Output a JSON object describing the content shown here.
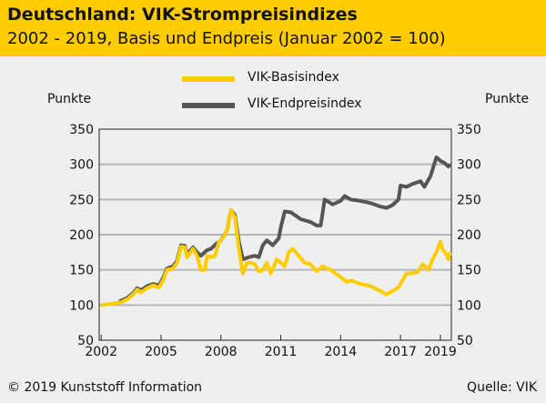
{
  "chart_data": {
    "type": "line",
    "title": "Deutschland: VIK-Strompreisindizes",
    "subtitle": "2002 - 2019, Basis und Endpreis (Januar 2002 = 100)",
    "ylabel_left": "Punkte",
    "ylabel_right": "Punkte",
    "ylim": [
      50,
      350
    ],
    "yticks": [
      350,
      300,
      250,
      200,
      150,
      100,
      50
    ],
    "xlim": [
      2001.9,
      2019.55
    ],
    "xticks": [
      2002,
      2005,
      2008,
      2011,
      2014,
      2017,
      2019
    ],
    "grid": true,
    "legend": "top-center",
    "series": [
      {
        "name": "VIK-Basisindex",
        "color": "#ffcc00",
        "points": [
          [
            2002.0,
            100
          ],
          [
            2002.5,
            102
          ],
          [
            2003.0,
            104
          ],
          [
            2003.3,
            108
          ],
          [
            2003.6,
            115
          ],
          [
            2003.8,
            122
          ],
          [
            2004.0,
            118
          ],
          [
            2004.3,
            124
          ],
          [
            2004.6,
            128
          ],
          [
            2004.9,
            125
          ],
          [
            2005.1,
            135
          ],
          [
            2005.3,
            150
          ],
          [
            2005.6,
            152
          ],
          [
            2005.8,
            160
          ],
          [
            2006.0,
            183
          ],
          [
            2006.2,
            182
          ],
          [
            2006.3,
            168
          ],
          [
            2006.6,
            180
          ],
          [
            2006.8,
            170
          ],
          [
            2007.0,
            150
          ],
          [
            2007.2,
            150
          ],
          [
            2007.3,
            170
          ],
          [
            2007.5,
            168
          ],
          [
            2007.7,
            170
          ],
          [
            2007.9,
            190
          ],
          [
            2008.1,
            195
          ],
          [
            2008.3,
            205
          ],
          [
            2008.5,
            235
          ],
          [
            2008.7,
            225
          ],
          [
            2008.9,
            180
          ],
          [
            2009.1,
            145
          ],
          [
            2009.3,
            160
          ],
          [
            2009.5,
            160
          ],
          [
            2009.7,
            158
          ],
          [
            2009.9,
            148
          ],
          [
            2010.1,
            150
          ],
          [
            2010.3,
            160
          ],
          [
            2010.5,
            145
          ],
          [
            2010.8,
            165
          ],
          [
            2011.0,
            160
          ],
          [
            2011.2,
            155
          ],
          [
            2011.4,
            175
          ],
          [
            2011.6,
            180
          ],
          [
            2011.9,
            170
          ],
          [
            2012.2,
            160
          ],
          [
            2012.5,
            158
          ],
          [
            2012.8,
            148
          ],
          [
            2013.1,
            155
          ],
          [
            2013.5,
            150
          ],
          [
            2014.0,
            140
          ],
          [
            2014.3,
            133
          ],
          [
            2014.5,
            135
          ],
          [
            2015.0,
            130
          ],
          [
            2015.5,
            127
          ],
          [
            2016.0,
            120
          ],
          [
            2016.3,
            115
          ],
          [
            2016.6,
            120
          ],
          [
            2016.9,
            125
          ],
          [
            2017.1,
            135
          ],
          [
            2017.3,
            145
          ],
          [
            2017.6,
            145
          ],
          [
            2017.9,
            148
          ],
          [
            2018.1,
            158
          ],
          [
            2018.4,
            150
          ],
          [
            2018.6,
            165
          ],
          [
            2018.8,
            175
          ],
          [
            2019.0,
            190
          ],
          [
            2019.1,
            180
          ],
          [
            2019.3,
            172
          ],
          [
            2019.4,
            165
          ],
          [
            2019.5,
            175
          ]
        ]
      },
      {
        "name": "VIK-Endpreisindex",
        "color": "#555555",
        "points": [
          [
            2002.9,
            105
          ],
          [
            2003.3,
            110
          ],
          [
            2003.6,
            117
          ],
          [
            2003.8,
            124
          ],
          [
            2004.0,
            121
          ],
          [
            2004.3,
            127
          ],
          [
            2004.6,
            130
          ],
          [
            2004.9,
            128
          ],
          [
            2005.1,
            138
          ],
          [
            2005.3,
            152
          ],
          [
            2005.6,
            155
          ],
          [
            2005.8,
            163
          ],
          [
            2006.0,
            185
          ],
          [
            2006.2,
            184
          ],
          [
            2006.3,
            172
          ],
          [
            2006.6,
            182
          ],
          [
            2006.8,
            175
          ],
          [
            2007.0,
            170
          ],
          [
            2007.3,
            178
          ],
          [
            2007.5,
            180
          ],
          [
            2007.8,
            188
          ],
          [
            2008.0,
            192
          ],
          [
            2008.3,
            205
          ],
          [
            2008.5,
            235
          ],
          [
            2008.7,
            228
          ],
          [
            2008.9,
            190
          ],
          [
            2009.1,
            165
          ],
          [
            2009.4,
            168
          ],
          [
            2009.7,
            170
          ],
          [
            2009.9,
            168
          ],
          [
            2010.1,
            185
          ],
          [
            2010.3,
            192
          ],
          [
            2010.6,
            185
          ],
          [
            2010.9,
            195
          ],
          [
            2011.0,
            210
          ],
          [
            2011.2,
            233
          ],
          [
            2011.5,
            232
          ],
          [
            2011.8,
            226
          ],
          [
            2012.0,
            222
          ],
          [
            2012.5,
            218
          ],
          [
            2012.8,
            213
          ],
          [
            2013.0,
            213
          ],
          [
            2013.2,
            250
          ],
          [
            2013.6,
            243
          ],
          [
            2014.0,
            248
          ],
          [
            2014.2,
            255
          ],
          [
            2014.5,
            250
          ],
          [
            2015.0,
            248
          ],
          [
            2015.5,
            245
          ],
          [
            2016.0,
            240
          ],
          [
            2016.3,
            238
          ],
          [
            2016.6,
            242
          ],
          [
            2016.9,
            250
          ],
          [
            2017.0,
            270
          ],
          [
            2017.3,
            268
          ],
          [
            2017.6,
            272
          ],
          [
            2018.0,
            276
          ],
          [
            2018.2,
            268
          ],
          [
            2018.5,
            283
          ],
          [
            2018.8,
            310
          ],
          [
            2019.0,
            305
          ],
          [
            2019.2,
            302
          ],
          [
            2019.4,
            297
          ],
          [
            2019.5,
            300
          ]
        ]
      }
    ]
  },
  "footer": {
    "copyright": "© 2019 Kunststoff Information",
    "source": "Quelle: VIK"
  }
}
